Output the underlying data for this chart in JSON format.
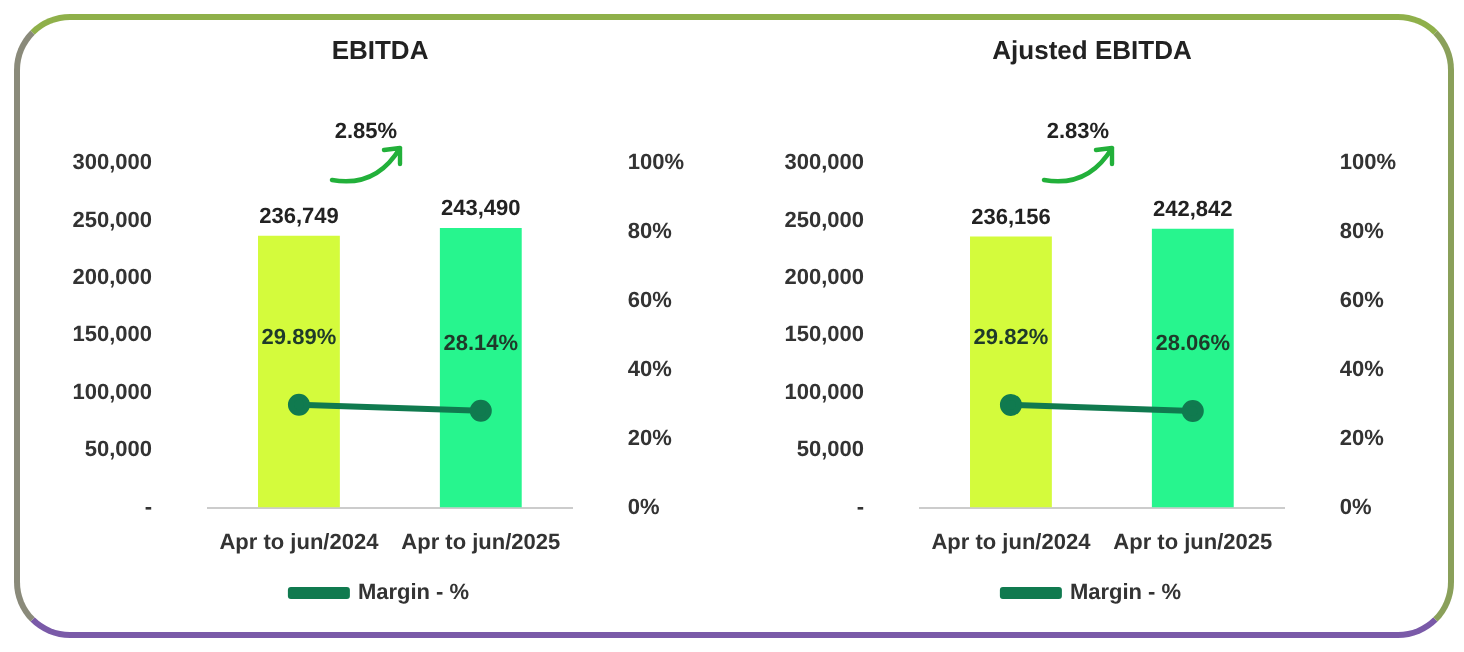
{
  "chart_data": [
    {
      "type": "bar",
      "title": "EBITDA",
      "categories": [
        "Apr to jun/2024",
        "Apr to jun/2025"
      ],
      "series": [
        {
          "colors": [
            "#d4fb3c",
            "#27f58e"
          ],
          "values": [
            236749,
            243490
          ],
          "value_labels": [
            "236,749",
            "243,490"
          ]
        },
        {
          "type": "line",
          "name": "Margin - %",
          "axis": "y2",
          "color": "#107a4f",
          "values": [
            29.89,
            28.14
          ],
          "value_labels": [
            "29.89%",
            "28.14%"
          ]
        }
      ],
      "ylim": [
        0,
        300000
      ],
      "yticks": [
        {
          "value": 0,
          "label": "-"
        },
        {
          "value": 50000,
          "label": "50,000"
        },
        {
          "value": 100000,
          "label": "100,000"
        },
        {
          "value": 150000,
          "label": "150,000"
        },
        {
          "value": 200000,
          "label": "200,000"
        },
        {
          "value": 250000,
          "label": "250,000"
        },
        {
          "value": 300000,
          "label": "300,000"
        }
      ],
      "y2lim": [
        0,
        100
      ],
      "y2ticks": [
        {
          "value": 0,
          "label": "0%"
        },
        {
          "value": 20,
          "label": "20%"
        },
        {
          "value": 40,
          "label": "40%"
        },
        {
          "value": 60,
          "label": "60%"
        },
        {
          "value": 80,
          "label": "80%"
        },
        {
          "value": 100,
          "label": "100%"
        }
      ],
      "annotations": [
        "2.85%"
      ],
      "legend": "bottom",
      "grid": false,
      "marker": "circle"
    },
    {
      "type": "bar",
      "title": "Ajusted EBITDA",
      "categories": [
        "Apr to jun/2024",
        "Apr to jun/2025"
      ],
      "series": [
        {
          "colors": [
            "#d4fb3c",
            "#27f58e"
          ],
          "values": [
            236156,
            242842
          ],
          "value_labels": [
            "236,156",
            "242,842"
          ]
        },
        {
          "type": "line",
          "name": "Margin - %",
          "axis": "y2",
          "color": "#107a4f",
          "values": [
            29.82,
            28.06
          ],
          "value_labels": [
            "29.82%",
            "28.06%"
          ]
        }
      ],
      "ylim": [
        0,
        300000
      ],
      "yticks": [
        {
          "value": 0,
          "label": "-"
        },
        {
          "value": 50000,
          "label": "50,000"
        },
        {
          "value": 100000,
          "label": "100,000"
        },
        {
          "value": 150000,
          "label": "150,000"
        },
        {
          "value": 200000,
          "label": "200,000"
        },
        {
          "value": 250000,
          "label": "250,000"
        },
        {
          "value": 300000,
          "label": "300,000"
        }
      ],
      "y2lim": [
        0,
        100
      ],
      "y2ticks": [
        {
          "value": 0,
          "label": "0%"
        },
        {
          "value": 20,
          "label": "20%"
        },
        {
          "value": 40,
          "label": "40%"
        },
        {
          "value": 60,
          "label": "60%"
        },
        {
          "value": 80,
          "label": "80%"
        },
        {
          "value": 100,
          "label": "100%"
        }
      ],
      "annotations": [
        "2.83%"
      ],
      "legend": "bottom",
      "grid": false,
      "marker": "circle"
    }
  ]
}
